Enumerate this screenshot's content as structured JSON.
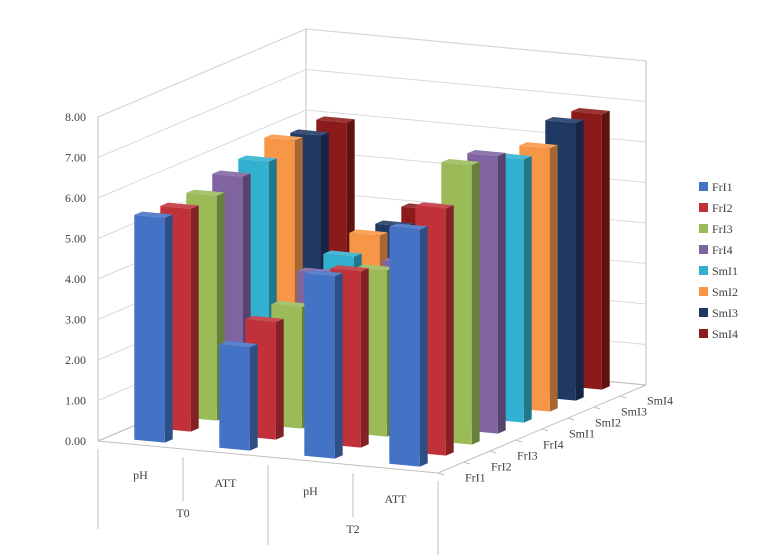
{
  "chart_data": {
    "type": "bar",
    "subtype": "3d-column",
    "groups": [
      "T0",
      "T2"
    ],
    "categories": [
      "pH",
      "ATT",
      "pH",
      "ATT"
    ],
    "ylim": [
      0,
      8
    ],
    "yticks": [
      "0.00",
      "1.00",
      "2.00",
      "3.00",
      "4.00",
      "5.00",
      "6.00",
      "7.00",
      "8.00"
    ],
    "depth_labels": [
      "FrI1",
      "FrI2",
      "FrI3",
      "FrI4",
      "SmI1",
      "SmI2",
      "SmI3",
      "SmI4"
    ],
    "grid": true,
    "legend_position": "right",
    "series": [
      {
        "name": "FrI1",
        "color": "#4472C4",
        "values": [
          5.55,
          2.55,
          4.5,
          5.85
        ]
      },
      {
        "name": "FrI2",
        "color": "#C0313A",
        "values": [
          5.5,
          2.9,
          4.35,
          6.1
        ]
      },
      {
        "name": "FrI3",
        "color": "#9BBB59",
        "values": [
          5.55,
          3.0,
          4.1,
          6.9
        ]
      },
      {
        "name": "FrI4",
        "color": "#8064A2",
        "values": [
          5.75,
          3.55,
          4.0,
          6.85
        ]
      },
      {
        "name": "SmI1",
        "color": "#31B0CF",
        "values": [
          5.85,
          3.7,
          4.15,
          6.5
        ]
      },
      {
        "name": "SmI2",
        "color": "#F79646",
        "values": [
          6.1,
          3.95,
          4.0,
          6.5
        ]
      },
      {
        "name": "SmI3",
        "color": "#1F3864",
        "values": [
          5.95,
          3.9,
          4.05,
          6.85
        ]
      },
      {
        "name": "SmI4",
        "color": "#8B1A1A",
        "values": [
          6.0,
          4.05,
          4.1,
          6.8
        ]
      }
    ]
  }
}
